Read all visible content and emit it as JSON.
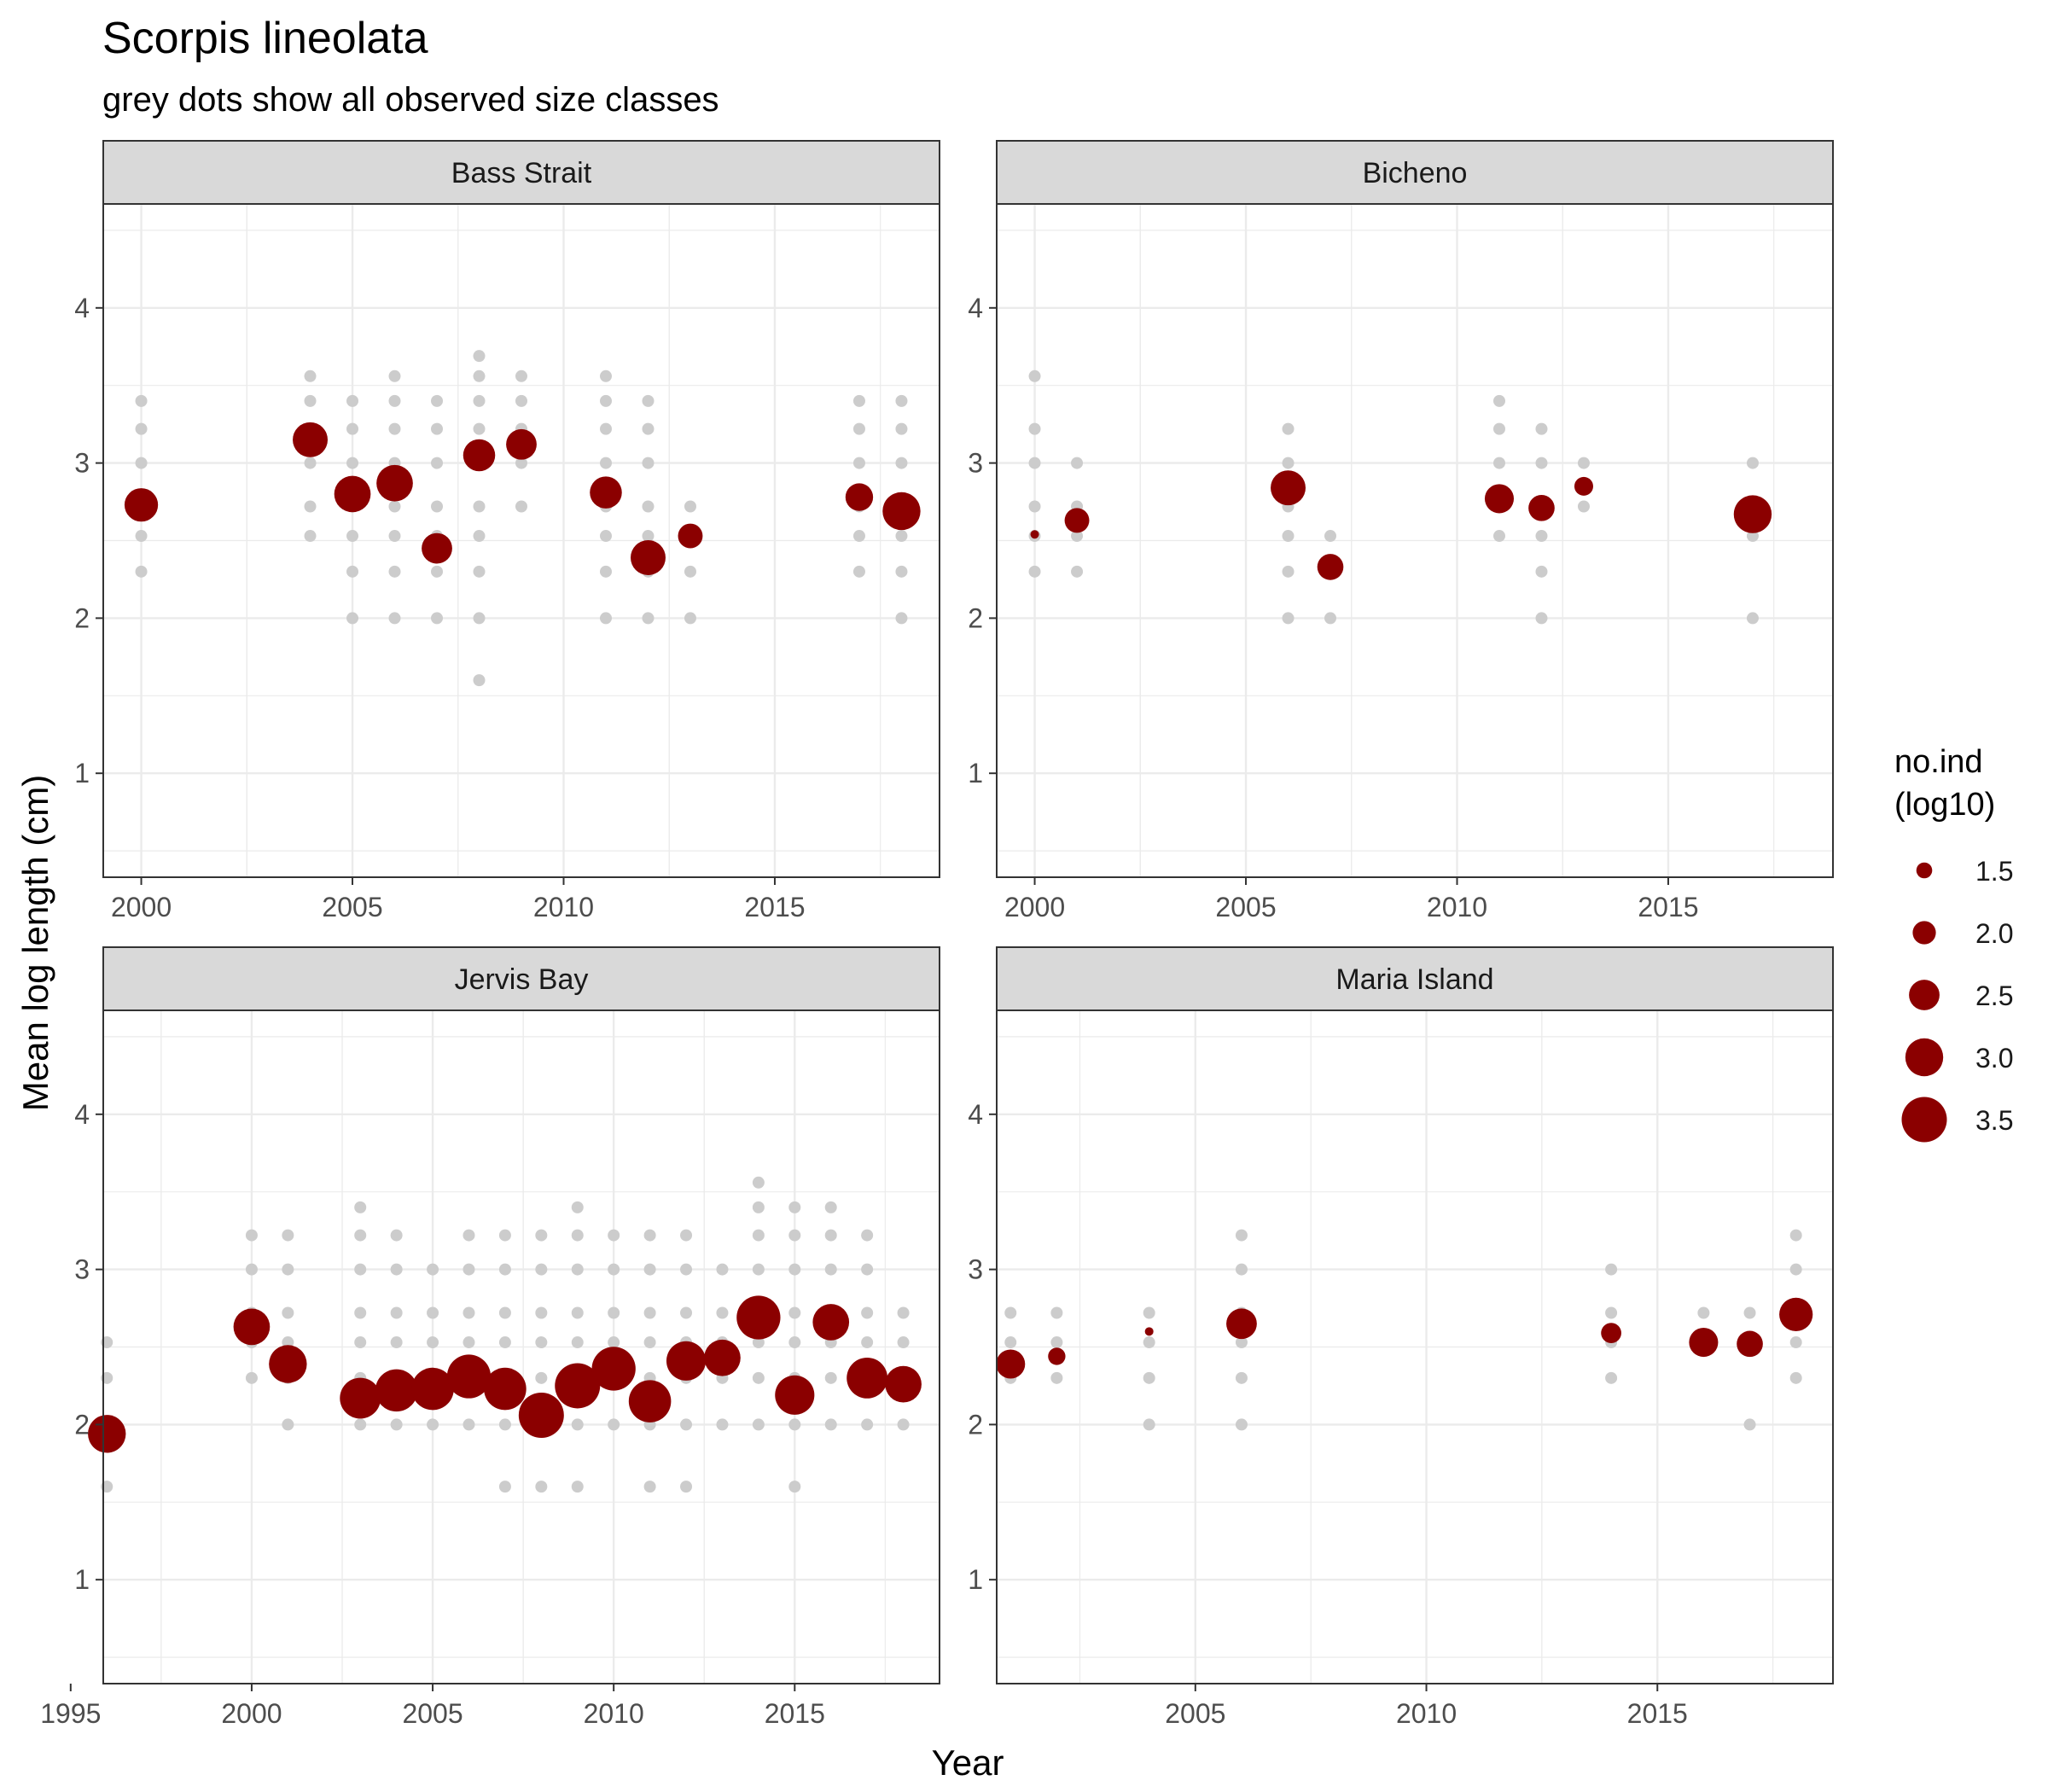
{
  "chart_data": {
    "type": "scatter",
    "title": "Scorpis lineolata",
    "subtitle": "grey dots show all observed size classes",
    "xlabel": "Year",
    "ylabel": "Mean log length (cm)",
    "y_ticks": [
      1,
      2,
      3,
      4
    ],
    "ylim": [
      0.33,
      4.67
    ],
    "grid": true,
    "colors": {
      "mean_point": "#8B0000",
      "size_class_point": "#CCCCCC",
      "strip_fill": "#D9D9D9",
      "grid": "#EBEBEB"
    },
    "legend": {
      "title_lines": [
        "no.ind",
        "(log10)"
      ],
      "placement": "right",
      "entries": [
        {
          "label": "1.5",
          "value": 1.5
        },
        {
          "label": "2.0",
          "value": 2.0
        },
        {
          "label": "2.5",
          "value": 2.5
        },
        {
          "label": "3.0",
          "value": 3.0
        },
        {
          "label": "3.5",
          "value": 3.5
        }
      ]
    },
    "panels": [
      {
        "name": "Bass Strait",
        "xlim": [
          1999.1,
          2018.9
        ],
        "x_ticks": [
          2000,
          2005,
          2010,
          2015
        ],
        "size_classes": [
          {
            "year": 2000,
            "lengths": [
              2.3,
              2.53,
              2.72,
              3.0,
              3.22,
              3.4
            ]
          },
          {
            "year": 2004,
            "lengths": [
              2.53,
              2.72,
              3.0,
              3.22,
              3.4,
              3.56
            ]
          },
          {
            "year": 2005,
            "lengths": [
              2.0,
              2.3,
              2.53,
              2.72,
              3.0,
              3.22,
              3.4
            ]
          },
          {
            "year": 2006,
            "lengths": [
              2.0,
              2.3,
              2.53,
              2.72,
              3.0,
              3.22,
              3.4,
              3.56
            ]
          },
          {
            "year": 2007,
            "lengths": [
              2.0,
              2.3,
              2.53,
              2.72,
              3.0,
              3.22,
              3.4
            ]
          },
          {
            "year": 2008,
            "lengths": [
              1.6,
              2.0,
              2.3,
              2.53,
              2.72,
              3.0,
              3.22,
              3.4,
              3.56,
              3.69
            ]
          },
          {
            "year": 2009,
            "lengths": [
              2.72,
              3.0,
              3.22,
              3.4,
              3.56
            ]
          },
          {
            "year": 2011,
            "lengths": [
              2.0,
              2.3,
              2.53,
              2.72,
              3.0,
              3.22,
              3.4,
              3.56
            ]
          },
          {
            "year": 2012,
            "lengths": [
              2.0,
              2.3,
              2.53,
              2.72,
              3.0,
              3.22,
              3.4
            ]
          },
          {
            "year": 2013,
            "lengths": [
              2.0,
              2.3,
              2.53,
              2.72
            ]
          },
          {
            "year": 2017,
            "lengths": [
              2.3,
              2.53,
              2.72,
              3.0,
              3.22,
              3.4
            ]
          },
          {
            "year": 2018,
            "lengths": [
              2.0,
              2.3,
              2.53,
              2.72,
              3.0,
              3.22,
              3.4
            ]
          }
        ],
        "means": [
          {
            "year": 2000,
            "mean_length": 2.73,
            "no_ind_log10": 2.7
          },
          {
            "year": 2004,
            "mean_length": 3.15,
            "no_ind_log10": 2.8
          },
          {
            "year": 2005,
            "mean_length": 2.8,
            "no_ind_log10": 2.9
          },
          {
            "year": 2006,
            "mean_length": 2.87,
            "no_ind_log10": 2.9
          },
          {
            "year": 2007,
            "mean_length": 2.45,
            "no_ind_log10": 2.5
          },
          {
            "year": 2008,
            "mean_length": 3.05,
            "no_ind_log10": 2.6
          },
          {
            "year": 2009,
            "mean_length": 3.12,
            "no_ind_log10": 2.5
          },
          {
            "year": 2011,
            "mean_length": 2.81,
            "no_ind_log10": 2.6
          },
          {
            "year": 2012,
            "mean_length": 2.39,
            "no_ind_log10": 2.8
          },
          {
            "year": 2013,
            "mean_length": 2.53,
            "no_ind_log10": 2.1
          },
          {
            "year": 2017,
            "mean_length": 2.78,
            "no_ind_log10": 2.3
          },
          {
            "year": 2018,
            "mean_length": 2.69,
            "no_ind_log10": 3.0
          }
        ]
      },
      {
        "name": "Bicheno",
        "xlim": [
          1999.1,
          2018.9
        ],
        "x_ticks": [
          2000,
          2005,
          2010,
          2015
        ],
        "size_classes": [
          {
            "year": 2000,
            "lengths": [
              2.3,
              2.53,
              2.72,
              3.0,
              3.22,
              3.56
            ]
          },
          {
            "year": 2001,
            "lengths": [
              2.3,
              2.53,
              2.72,
              3.0
            ]
          },
          {
            "year": 2006,
            "lengths": [
              2.0,
              2.3,
              2.53,
              2.72,
              3.0,
              3.22
            ]
          },
          {
            "year": 2007,
            "lengths": [
              2.0,
              2.3,
              2.53
            ]
          },
          {
            "year": 2011,
            "lengths": [
              2.53,
              2.72,
              3.0,
              3.22,
              3.4
            ]
          },
          {
            "year": 2012,
            "lengths": [
              2.0,
              2.3,
              2.53,
              2.72,
              3.0,
              3.22
            ]
          },
          {
            "year": 2013,
            "lengths": [
              2.72,
              3.0
            ]
          },
          {
            "year": 2017,
            "lengths": [
              2.0,
              2.53,
              2.72,
              3.0
            ]
          }
        ],
        "means": [
          {
            "year": 2000,
            "mean_length": 2.54,
            "no_ind_log10": 0.95
          },
          {
            "year": 2001,
            "mean_length": 2.63,
            "no_ind_log10": 2.1
          },
          {
            "year": 2006,
            "mean_length": 2.84,
            "no_ind_log10": 2.8
          },
          {
            "year": 2007,
            "mean_length": 2.33,
            "no_ind_log10": 2.2
          },
          {
            "year": 2011,
            "mean_length": 2.77,
            "no_ind_log10": 2.4
          },
          {
            "year": 2012,
            "mean_length": 2.71,
            "no_ind_log10": 2.2
          },
          {
            "year": 2013,
            "mean_length": 2.85,
            "no_ind_log10": 1.7
          },
          {
            "year": 2017,
            "mean_length": 2.67,
            "no_ind_log10": 3.0
          }
        ]
      },
      {
        "name": "Jervis Bay",
        "xlim": [
          1995.9,
          2019.0
        ],
        "x_ticks": [
          1995,
          2000,
          2005,
          2010,
          2015
        ],
        "size_classes": [
          {
            "year": 1996,
            "lengths": [
              1.6,
              2.0,
              2.3,
              2.53
            ]
          },
          {
            "year": 2000,
            "lengths": [
              2.3,
              2.53,
              2.72,
              3.0,
              3.22
            ]
          },
          {
            "year": 2001,
            "lengths": [
              2.0,
              2.3,
              2.53,
              2.72,
              3.0,
              3.22
            ]
          },
          {
            "year": 2003,
            "lengths": [
              2.0,
              2.3,
              2.53,
              2.72,
              3.0,
              3.22,
              3.4
            ]
          },
          {
            "year": 2004,
            "lengths": [
              2.0,
              2.3,
              2.53,
              2.72,
              3.0,
              3.22
            ]
          },
          {
            "year": 2005,
            "lengths": [
              2.0,
              2.3,
              2.53,
              2.72,
              3.0
            ]
          },
          {
            "year": 2006,
            "lengths": [
              2.0,
              2.3,
              2.53,
              2.72,
              3.0,
              3.22
            ]
          },
          {
            "year": 2007,
            "lengths": [
              1.6,
              2.0,
              2.3,
              2.53,
              2.72,
              3.0,
              3.22
            ]
          },
          {
            "year": 2008,
            "lengths": [
              1.6,
              2.0,
              2.3,
              2.53,
              2.72,
              3.0,
              3.22
            ]
          },
          {
            "year": 2009,
            "lengths": [
              1.6,
              2.0,
              2.3,
              2.53,
              2.72,
              3.0,
              3.22,
              3.4
            ]
          },
          {
            "year": 2010,
            "lengths": [
              2.0,
              2.3,
              2.53,
              2.72,
              3.0,
              3.22
            ]
          },
          {
            "year": 2011,
            "lengths": [
              1.6,
              2.0,
              2.3,
              2.53,
              2.72,
              3.0,
              3.22
            ]
          },
          {
            "year": 2012,
            "lengths": [
              1.6,
              2.0,
              2.3,
              2.53,
              2.72,
              3.0,
              3.22
            ]
          },
          {
            "year": 2013,
            "lengths": [
              2.0,
              2.3,
              2.53,
              2.72,
              3.0
            ]
          },
          {
            "year": 2014,
            "lengths": [
              2.0,
              2.3,
              2.53,
              2.72,
              3.0,
              3.22,
              3.4,
              3.56
            ]
          },
          {
            "year": 2015,
            "lengths": [
              1.6,
              2.0,
              2.3,
              2.53,
              2.72,
              3.0,
              3.22,
              3.4
            ]
          },
          {
            "year": 2016,
            "lengths": [
              2.0,
              2.3,
              2.53,
              2.72,
              3.0,
              3.22,
              3.4
            ]
          },
          {
            "year": 2017,
            "lengths": [
              2.0,
              2.3,
              2.53,
              2.72,
              3.0,
              3.22
            ]
          },
          {
            "year": 2018,
            "lengths": [
              2.0,
              2.3,
              2.53,
              2.72
            ]
          }
        ],
        "means": [
          {
            "year": 1996,
            "mean_length": 1.94,
            "no_ind_log10": 3.0
          },
          {
            "year": 2000,
            "mean_length": 2.63,
            "no_ind_log10": 2.9
          },
          {
            "year": 2001,
            "mean_length": 2.39,
            "no_ind_log10": 3.0
          },
          {
            "year": 2003,
            "mean_length": 2.17,
            "no_ind_log10": 3.2
          },
          {
            "year": 2004,
            "mean_length": 2.22,
            "no_ind_log10": 3.3
          },
          {
            "year": 2005,
            "mean_length": 2.23,
            "no_ind_log10": 3.3
          },
          {
            "year": 2006,
            "mean_length": 2.31,
            "no_ind_log10": 3.4
          },
          {
            "year": 2007,
            "mean_length": 2.23,
            "no_ind_log10": 3.3
          },
          {
            "year": 2008,
            "mean_length": 2.06,
            "no_ind_log10": 3.5
          },
          {
            "year": 2009,
            "mean_length": 2.25,
            "no_ind_log10": 3.5
          },
          {
            "year": 2010,
            "mean_length": 2.36,
            "no_ind_log10": 3.4
          },
          {
            "year": 2011,
            "mean_length": 2.15,
            "no_ind_log10": 3.3
          },
          {
            "year": 2012,
            "mean_length": 2.41,
            "no_ind_log10": 3.1
          },
          {
            "year": 2013,
            "mean_length": 2.43,
            "no_ind_log10": 2.9
          },
          {
            "year": 2014,
            "mean_length": 2.69,
            "no_ind_log10": 3.4
          },
          {
            "year": 2015,
            "mean_length": 2.19,
            "no_ind_log10": 3.1
          },
          {
            "year": 2016,
            "mean_length": 2.66,
            "no_ind_log10": 2.9
          },
          {
            "year": 2017,
            "mean_length": 2.3,
            "no_ind_log10": 3.2
          },
          {
            "year": 2018,
            "mean_length": 2.26,
            "no_ind_log10": 2.9
          }
        ]
      },
      {
        "name": "Maria Island",
        "xlim": [
          2000.7,
          2018.8
        ],
        "x_ticks": [
          2005,
          2010,
          2015
        ],
        "size_classes": [
          {
            "year": 2001,
            "lengths": [
              2.3,
              2.53,
              2.72
            ]
          },
          {
            "year": 2002,
            "lengths": [
              2.3,
              2.53,
              2.72
            ]
          },
          {
            "year": 2004,
            "lengths": [
              2.0,
              2.3,
              2.53,
              2.72
            ]
          },
          {
            "year": 2006,
            "lengths": [
              2.0,
              2.3,
              2.53,
              2.72,
              3.0,
              3.22
            ]
          },
          {
            "year": 2014,
            "lengths": [
              2.3,
              2.53,
              2.72,
              3.0
            ]
          },
          {
            "year": 2016,
            "lengths": [
              2.53,
              2.72
            ]
          },
          {
            "year": 2017,
            "lengths": [
              2.0,
              2.53,
              2.72
            ]
          },
          {
            "year": 2018,
            "lengths": [
              2.3,
              2.53,
              2.72,
              3.0,
              3.22
            ]
          }
        ],
        "means": [
          {
            "year": 2001,
            "mean_length": 2.39,
            "no_ind_log10": 2.4
          },
          {
            "year": 2002,
            "mean_length": 2.44,
            "no_ind_log10": 1.6
          },
          {
            "year": 2004,
            "mean_length": 2.6,
            "no_ind_log10": 0.95
          },
          {
            "year": 2006,
            "mean_length": 2.65,
            "no_ind_log10": 2.5
          },
          {
            "year": 2014,
            "mean_length": 2.59,
            "no_ind_log10": 1.8
          },
          {
            "year": 2016,
            "mean_length": 2.53,
            "no_ind_log10": 2.4
          },
          {
            "year": 2017,
            "mean_length": 2.52,
            "no_ind_log10": 2.2
          },
          {
            "year": 2018,
            "mean_length": 2.71,
            "no_ind_log10": 2.7
          }
        ]
      }
    ]
  }
}
